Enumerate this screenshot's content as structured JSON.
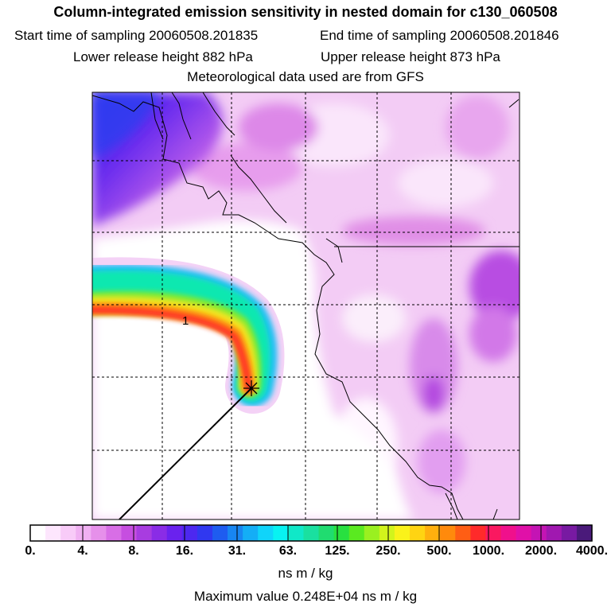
{
  "header": {
    "title": "Column-integrated emission sensitivity in nested domain for c130_060508",
    "start_label": "Start time of sampling 20060508.201835",
    "end_label": "End time of sampling 20060508.201846",
    "lower_label": "Lower release height  882 hPa",
    "upper_label": "Upper release height  873 hPa",
    "met_label": "Meteorological data used are from GFS"
  },
  "map": {
    "release_label": "1",
    "release_marker": "star-marker"
  },
  "colorbar": {
    "ticks": [
      "0.",
      "4.",
      "8.",
      "16.",
      "31.",
      "63.",
      "125.",
      "250.",
      "500.",
      "1000.",
      "2000.",
      "4000."
    ],
    "unit": "ns m / kg",
    "colors": [
      "#ffffff",
      "#fde6fd",
      "#f8cbf8",
      "#f0b0f2",
      "#e690ea",
      "#d86ee6",
      "#c64ee0",
      "#a83ce0",
      "#8a2ce6",
      "#6a22ee",
      "#4d28f0",
      "#3038f0",
      "#1e5cf0",
      "#1886f2",
      "#14aef6",
      "#10d4fa",
      "#08f2f2",
      "#10e8c8",
      "#1ae0a0",
      "#20dc70",
      "#28e040",
      "#5aea20",
      "#9af020",
      "#d2f41c",
      "#faf21a",
      "#ffd412",
      "#ffb00e",
      "#ff8a0c",
      "#ff5e14",
      "#ff2a2a",
      "#fa1860",
      "#f0108c",
      "#e010a8",
      "#c414b4",
      "#a018b0",
      "#781aa2",
      "#4a1a7a"
    ]
  },
  "footer": {
    "max_label": "Maximum value  0.248E+04 ns m / kg"
  }
}
